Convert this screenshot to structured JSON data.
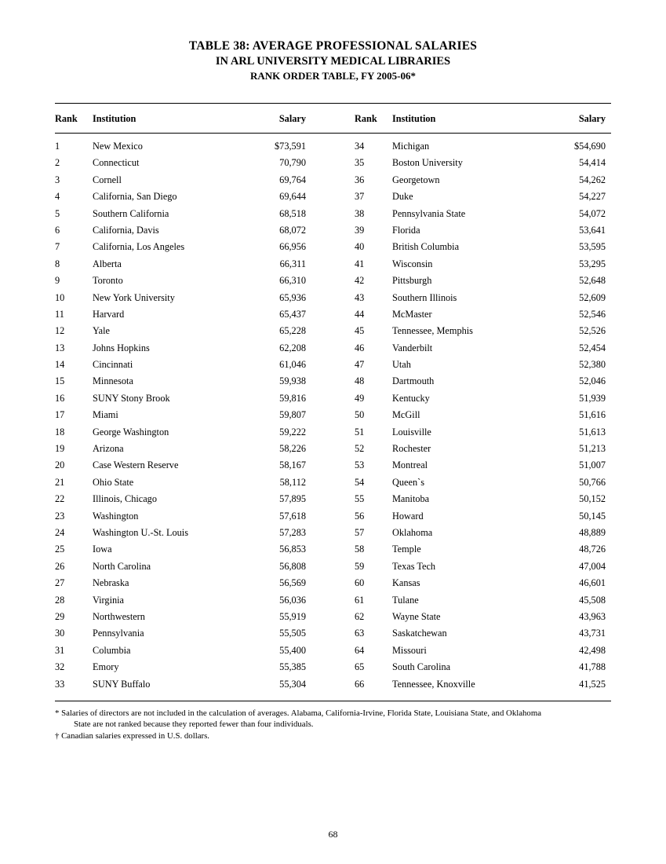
{
  "title": {
    "line1": "TABLE 38: AVERAGE PROFESSIONAL SALARIES",
    "line2": "IN ARL UNIVERSITY MEDICAL LIBRARIES",
    "line3": "RANK ORDER TABLE, FY 2005-06*"
  },
  "headers": {
    "rank": "Rank",
    "institution": "Institution",
    "salary": "Salary"
  },
  "left": [
    {
      "rank": "1",
      "inst": "New Mexico",
      "salary": "$73,591"
    },
    {
      "rank": "2",
      "inst": "Connecticut",
      "salary": "70,790"
    },
    {
      "rank": "3",
      "inst": "Cornell",
      "salary": "69,764"
    },
    {
      "rank": "4",
      "inst": "California, San Diego",
      "salary": "69,644"
    },
    {
      "rank": "5",
      "inst": "Southern California",
      "salary": "68,518"
    },
    {
      "rank": "6",
      "inst": "California, Davis",
      "salary": "68,072"
    },
    {
      "rank": "7",
      "inst": "California, Los Angeles",
      "salary": "66,956"
    },
    {
      "rank": "8",
      "inst": "Alberta",
      "salary": "66,311"
    },
    {
      "rank": "9",
      "inst": "Toronto",
      "salary": "66,310"
    },
    {
      "rank": "10",
      "inst": "New York University",
      "salary": "65,936"
    },
    {
      "rank": "11",
      "inst": "Harvard",
      "salary": "65,437"
    },
    {
      "rank": "12",
      "inst": "Yale",
      "salary": "65,228"
    },
    {
      "rank": "13",
      "inst": "Johns Hopkins",
      "salary": "62,208"
    },
    {
      "rank": "14",
      "inst": "Cincinnati",
      "salary": "61,046"
    },
    {
      "rank": "15",
      "inst": "Minnesota",
      "salary": "59,938"
    },
    {
      "rank": "16",
      "inst": "SUNY Stony Brook",
      "salary": "59,816"
    },
    {
      "rank": "17",
      "inst": "Miami",
      "salary": "59,807"
    },
    {
      "rank": "18",
      "inst": "George Washington",
      "salary": "59,222"
    },
    {
      "rank": "19",
      "inst": "Arizona",
      "salary": "58,226"
    },
    {
      "rank": "20",
      "inst": "Case Western Reserve",
      "salary": "58,167"
    },
    {
      "rank": "21",
      "inst": "Ohio State",
      "salary": "58,112"
    },
    {
      "rank": "22",
      "inst": "Illinois, Chicago",
      "salary": "57,895"
    },
    {
      "rank": "23",
      "inst": "Washington",
      "salary": "57,618"
    },
    {
      "rank": "24",
      "inst": "Washington U.-St. Louis",
      "salary": "57,283"
    },
    {
      "rank": "25",
      "inst": "Iowa",
      "salary": "56,853"
    },
    {
      "rank": "26",
      "inst": "North Carolina",
      "salary": "56,808"
    },
    {
      "rank": "27",
      "inst": "Nebraska",
      "salary": "56,569"
    },
    {
      "rank": "28",
      "inst": "Virginia",
      "salary": "56,036"
    },
    {
      "rank": "29",
      "inst": "Northwestern",
      "salary": "55,919"
    },
    {
      "rank": "30",
      "inst": "Pennsylvania",
      "salary": "55,505"
    },
    {
      "rank": "31",
      "inst": "Columbia",
      "salary": "55,400"
    },
    {
      "rank": "32",
      "inst": "Emory",
      "salary": "55,385"
    },
    {
      "rank": "33",
      "inst": "SUNY Buffalo",
      "salary": "55,304"
    }
  ],
  "right": [
    {
      "rank": "34",
      "inst": "Michigan",
      "salary": "$54,690"
    },
    {
      "rank": "35",
      "inst": "Boston University",
      "salary": "54,414"
    },
    {
      "rank": "36",
      "inst": "Georgetown",
      "salary": "54,262"
    },
    {
      "rank": "37",
      "inst": "Duke",
      "salary": "54,227"
    },
    {
      "rank": "38",
      "inst": "Pennsylvania State",
      "salary": "54,072"
    },
    {
      "rank": "39",
      "inst": "Florida",
      "salary": "53,641"
    },
    {
      "rank": "40",
      "inst": "British Columbia",
      "salary": "53,595"
    },
    {
      "rank": "41",
      "inst": "Wisconsin",
      "salary": "53,295"
    },
    {
      "rank": "42",
      "inst": "Pittsburgh",
      "salary": "52,648"
    },
    {
      "rank": "43",
      "inst": "Southern Illinois",
      "salary": "52,609"
    },
    {
      "rank": "44",
      "inst": "McMaster",
      "salary": "52,546"
    },
    {
      "rank": "45",
      "inst": "Tennessee, Memphis",
      "salary": "52,526"
    },
    {
      "rank": "46",
      "inst": "Vanderbilt",
      "salary": "52,454"
    },
    {
      "rank": "47",
      "inst": "Utah",
      "salary": "52,380"
    },
    {
      "rank": "48",
      "inst": "Dartmouth",
      "salary": "52,046"
    },
    {
      "rank": "49",
      "inst": "Kentucky",
      "salary": "51,939"
    },
    {
      "rank": "50",
      "inst": "McGill",
      "salary": "51,616"
    },
    {
      "rank": "51",
      "inst": "Louisville",
      "salary": "51,613"
    },
    {
      "rank": "52",
      "inst": "Rochester",
      "salary": "51,213"
    },
    {
      "rank": "53",
      "inst": "Montreal",
      "salary": "51,007"
    },
    {
      "rank": "54",
      "inst": "Queen`s",
      "salary": "50,766"
    },
    {
      "rank": "55",
      "inst": "Manitoba",
      "salary": "50,152"
    },
    {
      "rank": "56",
      "inst": "Howard",
      "salary": "50,145"
    },
    {
      "rank": "57",
      "inst": "Oklahoma",
      "salary": "48,889"
    },
    {
      "rank": "58",
      "inst": "Temple",
      "salary": "48,726"
    },
    {
      "rank": "59",
      "inst": "Texas Tech",
      "salary": "47,004"
    },
    {
      "rank": "60",
      "inst": "Kansas",
      "salary": "46,601"
    },
    {
      "rank": "61",
      "inst": "Tulane",
      "salary": "45,508"
    },
    {
      "rank": "62",
      "inst": "Wayne State",
      "salary": "43,963"
    },
    {
      "rank": "63",
      "inst": "Saskatchewan",
      "salary": "43,731"
    },
    {
      "rank": "64",
      "inst": "Missouri",
      "salary": "42,498"
    },
    {
      "rank": "65",
      "inst": "South Carolina",
      "salary": "41,788"
    },
    {
      "rank": "66",
      "inst": "Tennessee, Knoxville",
      "salary": "41,525"
    }
  ],
  "footnotes": {
    "note1a": "* Salaries of directors are not included in the calculation of averages. Alabama, California-Irvine, Florida State, Louisiana State, and Oklahoma",
    "note1b": "State are not ranked because they reported fewer than four individuals.",
    "note2": "† Canadian salaries expressed in U.S. dollars."
  },
  "pageNumber": "68"
}
